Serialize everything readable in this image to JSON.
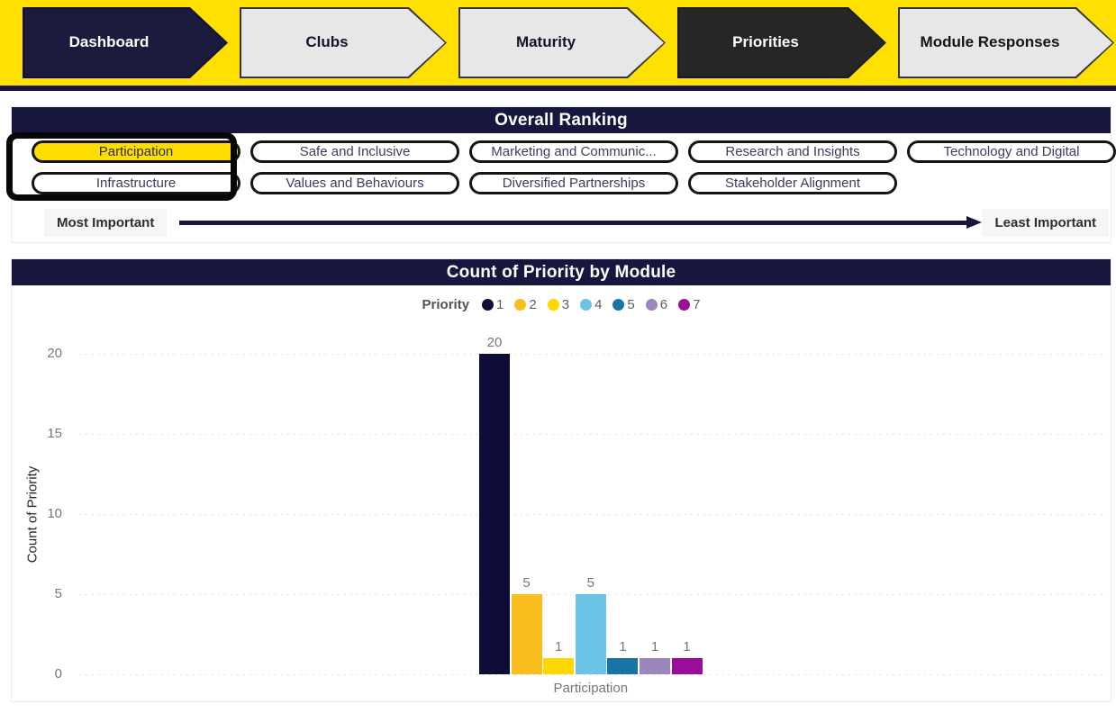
{
  "nav": {
    "background": "#FFE000",
    "tabs": [
      {
        "label": "Dashboard",
        "fill": "#1B1B3D",
        "border": "#10102E",
        "text": "#FFFFFF"
      },
      {
        "label": "Clubs",
        "fill": "#E7E7E7",
        "border": "#33333F",
        "text": "#13132E"
      },
      {
        "label": "Maturity",
        "fill": "#E7E7E7",
        "border": "#33333F",
        "text": "#13132E"
      },
      {
        "label": "Priorities",
        "fill": "#262626",
        "border": "#1A1A1A",
        "text": "#FFFFFF"
      },
      {
        "label": "Module Responses",
        "fill": "#E7E7E7",
        "border": "#33333F",
        "text": "#141414"
      }
    ]
  },
  "theme": {
    "header_navy": "#16163F",
    "divider_navy": "#17173E",
    "arrow_navy": "#16163C",
    "selected_pill_fill": "#FFDD00"
  },
  "ranking": {
    "title": "Overall Ranking",
    "pills": [
      {
        "label": "Participation",
        "selected": true
      },
      {
        "label": "Safe and Inclusive"
      },
      {
        "label": "Marketing and Communic..."
      },
      {
        "label": "Research and Insights"
      },
      {
        "label": "Technology and Digital"
      },
      {
        "label": "Infrastructure"
      },
      {
        "label": "Values and Behaviours"
      },
      {
        "label": "Diversified Partnerships"
      },
      {
        "label": "Stakeholder Alignment"
      }
    ],
    "scale_left": "Most Important",
    "scale_right": "Least Important"
  },
  "chart_data": {
    "type": "bar",
    "title": "Count of Priority by Module",
    "legend_title": "Priority",
    "legend_position": "top",
    "categories": [
      "Participation"
    ],
    "series": [
      {
        "name": "1",
        "color": "#0D0D38",
        "values": [
          20
        ]
      },
      {
        "name": "2",
        "color": "#F9BE1D",
        "values": [
          5
        ]
      },
      {
        "name": "3",
        "color": "#FFD800",
        "values": [
          1
        ]
      },
      {
        "name": "4",
        "color": "#6BC4E8",
        "values": [
          5
        ]
      },
      {
        "name": "5",
        "color": "#1874A5",
        "values": [
          1
        ]
      },
      {
        "name": "6",
        "color": "#9B86BD",
        "values": [
          1
        ]
      },
      {
        "name": "7",
        "color": "#990D99",
        "values": [
          1
        ]
      }
    ],
    "xlabel": "",
    "ylabel": "Count of Priority",
    "ylim": [
      0,
      20
    ],
    "yticks": [
      0,
      5,
      10,
      15,
      20
    ],
    "grid": "dotted horizontal"
  }
}
